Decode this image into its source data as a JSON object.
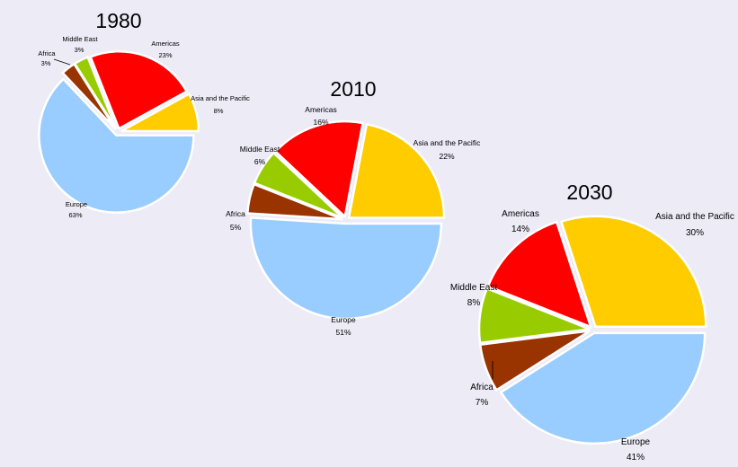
{
  "chart_data": [
    {
      "type": "pie",
      "title": "1980",
      "slices": [
        {
          "name": "Asia and the Pacific",
          "value": 8,
          "label": "8%",
          "color": "#ffcc00"
        },
        {
          "name": "Europe",
          "value": 63,
          "label": "63%",
          "color": "#99ccff"
        },
        {
          "name": "Africa",
          "value": 3,
          "label": "3%",
          "color": "#993300"
        },
        {
          "name": "Middle East",
          "value": 3,
          "label": "3%",
          "color": "#99cc00"
        },
        {
          "name": "Americas",
          "value": 23,
          "label": "23%",
          "color": "#ff0000"
        }
      ]
    },
    {
      "type": "pie",
      "title": "2010",
      "slices": [
        {
          "name": "Asia and the Pacific",
          "value": 22,
          "label": "22%",
          "color": "#ffcc00"
        },
        {
          "name": "Europe",
          "value": 51,
          "label": "51%",
          "color": "#99ccff"
        },
        {
          "name": "Africa",
          "value": 5,
          "label": "5%",
          "color": "#993300"
        },
        {
          "name": "Middle East",
          "value": 6,
          "label": "6%",
          "color": "#99cc00"
        },
        {
          "name": "Americas",
          "value": 16,
          "label": "16%",
          "color": "#ff0000"
        }
      ]
    },
    {
      "type": "pie",
      "title": "2030",
      "slices": [
        {
          "name": "Asia and the Pacific",
          "value": 30,
          "label": "30%",
          "color": "#ffcc00"
        },
        {
          "name": "Europe",
          "value": 41,
          "label": "41%",
          "color": "#99ccff"
        },
        {
          "name": "Africa",
          "value": 7,
          "label": "7%",
          "color": "#993300"
        },
        {
          "name": "Middle East",
          "value": 8,
          "label": "8%",
          "color": "#99cc00"
        },
        {
          "name": "Americas",
          "value": 14,
          "label": "14%",
          "color": "#ff0000"
        }
      ]
    }
  ]
}
